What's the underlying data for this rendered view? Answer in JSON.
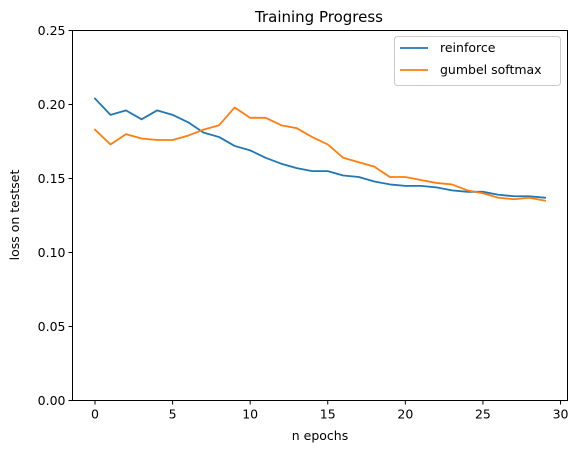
{
  "chart_data": {
    "type": "line",
    "title": "Training Progress",
    "xlabel": "n epochs",
    "ylabel": "loss on testset",
    "xlim": [
      -1.45,
      30.45
    ],
    "ylim": [
      0.0,
      0.25
    ],
    "x_ticks": [
      0,
      5,
      10,
      15,
      20,
      25,
      30
    ],
    "x_tick_labels": [
      "0",
      "5",
      "10",
      "15",
      "20",
      "25",
      "30"
    ],
    "y_ticks": [
      0.0,
      0.05,
      0.1,
      0.15,
      0.2,
      0.25
    ],
    "y_tick_labels": [
      "0.00",
      "0.05",
      "0.10",
      "0.15",
      "0.20",
      "0.25"
    ],
    "grid": false,
    "legend_position": "top-right",
    "x": [
      0,
      1,
      2,
      3,
      4,
      5,
      6,
      7,
      8,
      9,
      10,
      11,
      12,
      13,
      14,
      15,
      16,
      17,
      18,
      19,
      20,
      21,
      22,
      23,
      24,
      25,
      26,
      27,
      28,
      29
    ],
    "series": [
      {
        "name": "reinforce",
        "color": "#1f77b4",
        "values": [
          0.204,
          0.193,
          0.196,
          0.19,
          0.196,
          0.193,
          0.188,
          0.181,
          0.178,
          0.172,
          0.169,
          0.164,
          0.16,
          0.157,
          0.155,
          0.155,
          0.152,
          0.151,
          0.148,
          0.146,
          0.145,
          0.145,
          0.144,
          0.142,
          0.141,
          0.141,
          0.139,
          0.138,
          0.138,
          0.137
        ]
      },
      {
        "name": "gumbel softmax",
        "color": "#ff7f0e",
        "values": [
          0.183,
          0.173,
          0.18,
          0.177,
          0.176,
          0.176,
          0.179,
          0.183,
          0.186,
          0.198,
          0.191,
          0.191,
          0.186,
          0.184,
          0.178,
          0.173,
          0.164,
          0.161,
          0.158,
          0.151,
          0.151,
          0.149,
          0.147,
          0.146,
          0.142,
          0.14,
          0.137,
          0.136,
          0.137,
          0.135
        ]
      }
    ]
  }
}
